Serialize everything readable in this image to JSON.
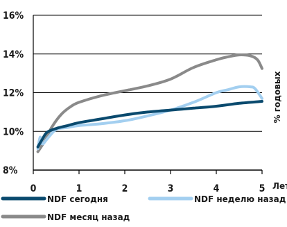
{
  "chart_data": {
    "type": "line",
    "xlabel": "Лет",
    "ylabel": "% годовых",
    "xlim": [
      0,
      5
    ],
    "ylim": [
      8,
      16
    ],
    "xticks": [
      "0",
      "1",
      "2",
      "3",
      "4",
      "5"
    ],
    "yticks": [
      "8%",
      "10%",
      "12%",
      "14%",
      "16%"
    ],
    "grid": "horizontal",
    "colors": {
      "today": "#0a4a6e",
      "week": "#a3cff0",
      "month": "#8a8a8a",
      "grid": "#000000",
      "bg": "#ffffff"
    },
    "series": [
      {
        "name": "NDF сегодня",
        "key": "today",
        "x": [
          0.1,
          0.2,
          0.3,
          0.5,
          0.75,
          1.0,
          1.5,
          2.0,
          2.5,
          3.0,
          3.5,
          4.0,
          4.5,
          5.0
        ],
        "y": [
          9.2,
          9.6,
          9.95,
          10.15,
          10.3,
          10.45,
          10.65,
          10.85,
          11.0,
          11.1,
          11.2,
          11.3,
          11.45,
          11.55
        ]
      },
      {
        "name": "NDF неделю назад",
        "key": "week",
        "x": [
          0.1,
          0.15,
          0.2,
          0.3,
          0.5,
          0.75,
          1.0,
          1.5,
          2.0,
          2.5,
          3.0,
          3.5,
          4.0,
          4.25,
          4.5,
          4.75,
          4.85,
          5.0
        ],
        "y": [
          9.1,
          9.7,
          9.35,
          9.6,
          10.1,
          10.2,
          10.3,
          10.4,
          10.55,
          10.8,
          11.1,
          11.5,
          12.0,
          12.15,
          12.3,
          12.3,
          12.2,
          11.7
        ]
      },
      {
        "name": "NDF месяц назад",
        "key": "month",
        "x": [
          0.1,
          0.25,
          0.4,
          0.6,
          0.8,
          1.0,
          1.5,
          2.0,
          2.5,
          3.0,
          3.5,
          4.0,
          4.25,
          4.5,
          4.75,
          4.9,
          5.0
        ],
        "y": [
          8.95,
          9.5,
          10.2,
          10.85,
          11.25,
          11.5,
          11.85,
          12.1,
          12.35,
          12.7,
          13.3,
          13.7,
          13.85,
          13.95,
          13.9,
          13.7,
          13.25
        ]
      }
    ],
    "legend": [
      {
        "label": "NDF сегодня",
        "key": "today"
      },
      {
        "label": "NDF неделю назад",
        "key": "week"
      },
      {
        "label": "NDF месяц назад",
        "key": "month"
      }
    ]
  }
}
